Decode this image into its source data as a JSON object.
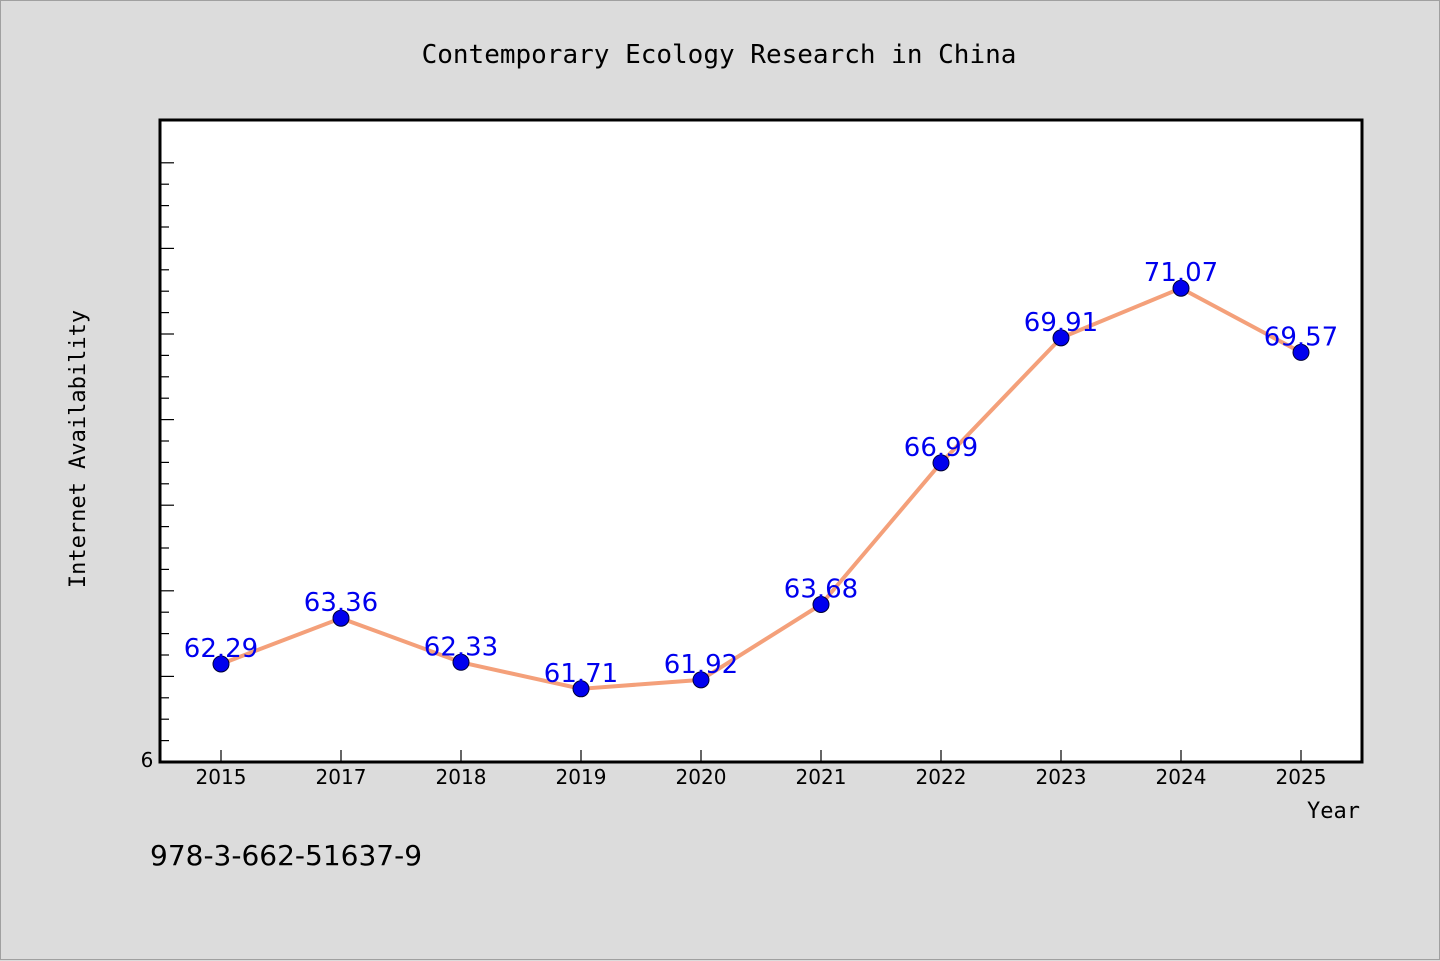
{
  "chart_data": {
    "type": "line",
    "title": "Contemporary Ecology Research in China",
    "xlabel": "Year",
    "ylabel": "Internet Availability",
    "categories": [
      "2015",
      "2017",
      "2018",
      "2019",
      "2020",
      "2021",
      "2022",
      "2023",
      "2024",
      "2025"
    ],
    "series": [
      {
        "values": [
          62.29,
          63.36,
          62.33,
          61.71,
          61.92,
          63.68,
          66.99,
          69.91,
          71.07,
          69.57
        ],
        "data_labels": [
          "62.29",
          "63.36",
          "62.33",
          "61.71",
          "61.92",
          "63.68",
          "66.99",
          "69.91",
          "71.07",
          "69.57"
        ]
      }
    ],
    "ylim": [
      60,
      75
    ],
    "y_tick_label": "6",
    "grid": false,
    "legend": "none",
    "colors": {
      "line": "#f4a07a",
      "marker": "#0000ee",
      "data_label": "#0000ee",
      "plot_background": "#ffffff",
      "page_background": "#dcdcdc"
    }
  },
  "footer": {
    "isbn": "978-3-662-51637-9"
  }
}
